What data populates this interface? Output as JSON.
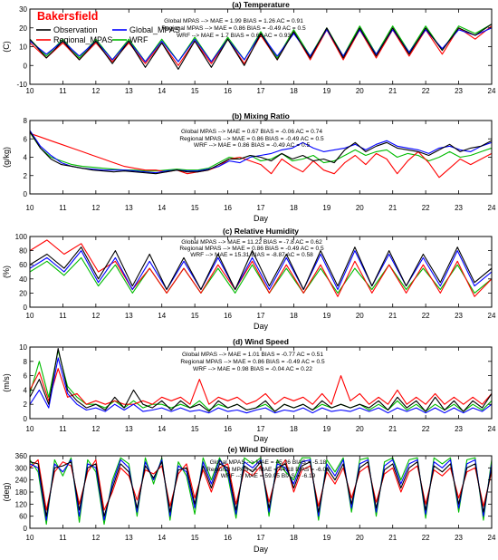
{
  "station": "Bakersfield",
  "colors": {
    "Observation": "#000000",
    "Global_MPAS": "#0000ff",
    "Regional_MPAS": "#ff0000",
    "WRF": "#00bb00",
    "station_title": "#ff0000"
  },
  "legend": {
    "items": [
      "Observation",
      "Global_MPAS",
      "Regional_MPAS",
      "WRF"
    ]
  },
  "chart_data": [
    {
      "type": "line",
      "panel_id": "a",
      "title": "(a) Temperature",
      "xlabel": "",
      "ylabel": "(C)",
      "xlim": [
        10,
        24
      ],
      "ylim": [
        -10,
        30
      ],
      "x_ticks": [
        "10",
        "11",
        "12",
        "13",
        "14",
        "15",
        "16",
        "17",
        "18",
        "19",
        "20",
        "21",
        "22",
        "23",
        "24"
      ],
      "y_ticks": [
        "-10",
        "0",
        "10",
        "20",
        "30"
      ],
      "stats": [
        "Global MPAS --> MAE = 1.99  BIAS = 1.26    AC = 0.91",
        "Regional MPAS --> MAE = 0.86  BIAS = -0.49    AC = 0.5",
        "WRF --> MAE = 1.7  BIAS = 0.68    AC = 0.93"
      ],
      "series": [
        {
          "name": "Observation",
          "values": [
            14,
            4,
            13,
            3,
            13,
            1,
            13,
            -1,
            12,
            -2,
            13,
            -1,
            14,
            0,
            17,
            3,
            18,
            4,
            20,
            4,
            20,
            5,
            20,
            6,
            20,
            8,
            20,
            16,
            22
          ]
        },
        {
          "name": "Global_MPAS",
          "values": [
            13,
            6,
            13,
            5,
            13,
            3,
            13,
            2,
            13,
            2,
            14,
            2,
            14,
            3,
            17,
            5,
            17,
            5,
            19,
            5,
            19,
            6,
            19,
            7,
            19,
            9,
            19,
            16,
            20
          ]
        },
        {
          "name": "Regional_MPAS",
          "values": [
            12,
            4,
            12,
            3,
            12,
            2,
            12,
            1,
            12,
            0,
            13,
            1,
            14,
            1,
            16,
            3,
            18,
            3,
            19,
            3,
            19,
            4,
            19,
            5,
            19,
            6,
            20,
            14,
            21
          ]
        },
        {
          "name": "WRF",
          "values": [
            14,
            5,
            14,
            4,
            14,
            3,
            14,
            2,
            14,
            2,
            15,
            2,
            15,
            3,
            18,
            4,
            19,
            5,
            20,
            5,
            21,
            6,
            21,
            7,
            21,
            8,
            21,
            17,
            22
          ]
        }
      ]
    },
    {
      "type": "line",
      "panel_id": "b",
      "title": "(b) Mixing Ratio",
      "xlabel": "Day",
      "ylabel": "(g/kg)",
      "xlim": [
        10,
        24
      ],
      "ylim": [
        0,
        8
      ],
      "x_ticks": [
        "10",
        "11",
        "12",
        "13",
        "14",
        "15",
        "16",
        "17",
        "18",
        "19",
        "20",
        "21",
        "22",
        "23",
        "24"
      ],
      "y_ticks": [
        "0",
        "2",
        "4",
        "6",
        "8"
      ],
      "stats": [
        "Global MPAS --> MAE = 0.67  BIAS = -0.06    AC = 0.74",
        "Regional MPAS --> MAE = 0.86  BIAS = -0.49    AC = 0.5",
        "WRF --> MAE = 0.86  BIAS = -0.49    AC = 0.5"
      ],
      "series": [
        {
          "name": "Observation",
          "values": [
            6.8,
            5.0,
            3.8,
            3.2,
            3.0,
            2.8,
            2.6,
            2.5,
            2.4,
            2.5,
            2.4,
            2.3,
            2.2,
            2.4,
            2.6,
            2.4,
            2.4,
            2.6,
            3.2,
            3.8,
            3.8,
            4.2,
            4.0,
            3.6,
            4.4,
            3.8,
            4.2,
            3.6,
            3.8,
            3.4,
            4.8,
            5.6,
            4.6,
            5.2,
            5.6,
            5.0,
            4.8,
            4.6,
            4.2,
            4.8,
            5.4,
            4.6,
            5.0,
            5.2,
            5.8
          ]
        },
        {
          "name": "Global_MPAS",
          "values": [
            6.9,
            5.2,
            4.2,
            3.4,
            3.0,
            2.8,
            2.7,
            2.6,
            2.6,
            2.6,
            2.5,
            2.4,
            2.3,
            2.5,
            2.6,
            2.5,
            2.5,
            2.7,
            3.0,
            3.6,
            3.4,
            4.0,
            4.2,
            4.4,
            4.8,
            5.0,
            5.6,
            5.0,
            4.6,
            4.8,
            5.0,
            5.4,
            4.8,
            5.4,
            5.8,
            5.2,
            5.0,
            4.8,
            4.4,
            5.0,
            5.2,
            4.8,
            4.6,
            5.2,
            5.6
          ]
        },
        {
          "name": "Regional_MPAS",
          "values": [
            6.6,
            6.2,
            5.8,
            5.4,
            5.0,
            4.6,
            4.2,
            3.8,
            3.4,
            3.0,
            2.8,
            2.6,
            2.6,
            2.4,
            2.6,
            2.2,
            2.4,
            2.6,
            3.0,
            3.8,
            4.0,
            3.6,
            3.2,
            2.2,
            3.8,
            3.0,
            2.4,
            3.6,
            2.6,
            2.2,
            3.4,
            4.2,
            3.2,
            4.4,
            3.8,
            2.2,
            3.6,
            4.6,
            3.4,
            1.8,
            2.8,
            3.8,
            3.2,
            3.8,
            4.4
          ]
        },
        {
          "name": "WRF",
          "values": [
            6.7,
            5.0,
            4.0,
            3.6,
            3.2,
            3.0,
            2.9,
            2.8,
            2.7,
            2.6,
            2.6,
            2.5,
            2.5,
            2.6,
            2.7,
            2.6,
            2.6,
            2.8,
            3.4,
            4.0,
            3.8,
            4.2,
            3.6,
            3.8,
            4.4,
            3.6,
            3.8,
            4.2,
            3.4,
            3.6,
            4.2,
            4.8,
            4.2,
            4.6,
            4.8,
            4.0,
            4.4,
            4.2,
            3.6,
            4.0,
            4.6,
            4.0,
            4.2,
            4.6,
            5.0
          ]
        }
      ]
    },
    {
      "type": "line",
      "panel_id": "c",
      "title": "(c) Relative Humidity",
      "xlabel": "Day",
      "ylabel": "(%)",
      "xlim": [
        10,
        24
      ],
      "ylim": [
        0,
        100
      ],
      "x_ticks": [
        "10",
        "11",
        "12",
        "13",
        "14",
        "15",
        "16",
        "17",
        "18",
        "19",
        "20",
        "21",
        "22",
        "23",
        "24"
      ],
      "y_ticks": [
        "0",
        "20",
        "40",
        "60",
        "80",
        "100"
      ],
      "stats": [
        "Global MPAS --> MAE = 11.22  BIAS = -7.8    AC = 0.62",
        "Regional MPAS --> MAE = 0.86  BIAS = -0.49    AC = 0.5",
        "WRF --> MAE = 15.31  BIAS = -8.87    AC = 0.58"
      ],
      "series": [
        {
          "name": "Observation",
          "values": [
            60,
            75,
            55,
            85,
            40,
            80,
            30,
            75,
            25,
            70,
            25,
            75,
            25,
            80,
            30,
            75,
            25,
            80,
            30,
            85,
            30,
            80,
            30,
            75,
            35,
            85,
            35,
            55
          ]
        },
        {
          "name": "Global_MPAS",
          "values": [
            55,
            70,
            50,
            80,
            35,
            70,
            25,
            65,
            25,
            65,
            25,
            70,
            25,
            70,
            25,
            70,
            25,
            75,
            25,
            80,
            30,
            75,
            30,
            70,
            30,
            80,
            30,
            50
          ]
        },
        {
          "name": "Regional_MPAS",
          "values": [
            80,
            95,
            75,
            90,
            50,
            65,
            25,
            55,
            20,
            55,
            20,
            60,
            25,
            65,
            20,
            60,
            20,
            60,
            15,
            65,
            20,
            60,
            20,
            60,
            20,
            65,
            15,
            40
          ]
        },
        {
          "name": "WRF",
          "values": [
            50,
            65,
            45,
            70,
            30,
            60,
            20,
            55,
            20,
            55,
            20,
            55,
            20,
            60,
            20,
            55,
            20,
            55,
            20,
            55,
            25,
            60,
            25,
            55,
            25,
            60,
            20,
            40
          ]
        }
      ]
    },
    {
      "type": "line",
      "panel_id": "d",
      "title": "(d) Wind Speed",
      "xlabel": "Day",
      "ylabel": "(m/s)",
      "xlim": [
        10,
        24
      ],
      "ylim": [
        0,
        10
      ],
      "x_ticks": [
        "10",
        "11",
        "12",
        "13",
        "14",
        "15",
        "16",
        "17",
        "18",
        "19",
        "20",
        "21",
        "22",
        "23",
        "24"
      ],
      "y_ticks": [
        "0",
        "2",
        "4",
        "6",
        "8",
        "10"
      ],
      "stats": [
        "Global MPAS --> MAE = 1.01  BIAS = -0.77    AC = 0.51",
        "Regional MPAS --> MAE = 0.86  BIAS = -0.49    AC = 0.5",
        "WRF --> MAE = 0.98  BIAS = -0.04    AC = 0.22"
      ],
      "series": [
        {
          "name": "Observation",
          "values": [
            3.0,
            5.5,
            2.0,
            9.8,
            4.0,
            2.5,
            1.5,
            2.0,
            1.2,
            3.0,
            1.5,
            4.0,
            2.0,
            1.5,
            2.5,
            1.2,
            2.5,
            1.5,
            2.0,
            1.0,
            2.5,
            1.5,
            2.0,
            1.2,
            1.5,
            2.5,
            1.0,
            2.0,
            1.5,
            2.0,
            1.2,
            2.5,
            1.5,
            2.0,
            1.5,
            2.0,
            1.5,
            2.5,
            1.2,
            3.0,
            1.5,
            2.5,
            1.0,
            3.0,
            1.2,
            2.5,
            1.0,
            2.5,
            1.5,
            3.5
          ]
        },
        {
          "name": "Global_MPAS",
          "values": [
            2.0,
            4.0,
            1.5,
            8.5,
            3.5,
            2.0,
            1.2,
            1.5,
            1.0,
            2.0,
            1.2,
            2.0,
            1.0,
            1.2,
            1.5,
            1.0,
            1.5,
            1.0,
            1.2,
            0.8,
            1.5,
            1.0,
            1.2,
            0.8,
            1.2,
            1.5,
            0.8,
            1.2,
            1.0,
            1.5,
            0.8,
            1.5,
            1.0,
            1.2,
            1.0,
            1.5,
            1.0,
            1.5,
            0.8,
            1.5,
            1.0,
            1.5,
            0.8,
            1.5,
            0.8,
            1.5,
            0.8,
            1.5,
            1.0,
            2.0
          ]
        },
        {
          "name": "Regional_MPAS",
          "values": [
            4.0,
            6.5,
            2.5,
            7.0,
            3.0,
            3.5,
            2.0,
            2.5,
            2.0,
            2.5,
            2.0,
            2.0,
            2.5,
            2.0,
            3.0,
            2.5,
            3.0,
            2.0,
            5.5,
            2.0,
            3.0,
            2.5,
            3.0,
            2.0,
            2.5,
            3.5,
            2.0,
            3.0,
            2.5,
            3.0,
            2.0,
            3.5,
            2.0,
            6.0,
            2.5,
            3.5,
            2.0,
            3.0,
            2.0,
            4.0,
            2.0,
            3.0,
            2.0,
            3.5,
            2.0,
            3.0,
            2.0,
            3.0,
            2.0,
            3.5
          ]
        },
        {
          "name": "WRF",
          "values": [
            3.5,
            8.0,
            3.0,
            9.5,
            4.5,
            3.0,
            2.0,
            2.0,
            1.5,
            2.5,
            1.5,
            2.5,
            1.5,
            2.0,
            2.0,
            1.5,
            2.0,
            1.5,
            2.5,
            1.2,
            2.0,
            1.5,
            2.0,
            1.2,
            1.5,
            2.0,
            1.0,
            2.0,
            1.5,
            2.0,
            1.2,
            2.0,
            1.5,
            2.0,
            1.5,
            2.0,
            1.2,
            2.0,
            1.2,
            2.5,
            1.2,
            2.0,
            1.0,
            2.0,
            1.2,
            2.0,
            1.0,
            2.0,
            1.2,
            2.5
          ]
        }
      ]
    },
    {
      "type": "line",
      "panel_id": "e",
      "title": "(e) Wind Direction",
      "xlabel": "Day",
      "ylabel": "(deg)",
      "xlim": [
        10,
        24
      ],
      "ylim": [
        0,
        360
      ],
      "x_ticks": [
        "10",
        "11",
        "12",
        "13",
        "14",
        "15",
        "16",
        "17",
        "18",
        "19",
        "20",
        "21",
        "22",
        "23",
        "24"
      ],
      "y_ticks": [
        "0",
        "60",
        "120",
        "180",
        "240",
        "300",
        "360"
      ],
      "stats": [
        "Global MPAS --> MAE = 45.26  BIAS = -5.18",
        "Regional MPAS --> MAE = 44.18  BIAS = -6.09",
        "WRF --> MAE = 59.05  BIAS = -6.19"
      ],
      "series": [
        {
          "name": "Observation",
          "values": [
            330,
            320,
            60,
            300,
            310,
            330,
            90,
            300,
            320,
            60,
            200,
            320,
            280,
            100,
            310,
            250,
            330,
            80,
            290,
            300,
            120,
            310,
            200,
            320,
            300,
            90,
            310,
            280,
            330,
            100,
            300,
            320,
            200,
            310,
            330,
            80,
            300,
            240,
            320,
            120,
            300,
            330,
            100,
            290,
            320,
            200,
            300,
            330,
            90,
            310,
            280,
            320,
            120,
            300,
            320,
            80,
            300
          ]
        },
        {
          "name": "Global_MPAS",
          "values": [
            320,
            300,
            40,
            320,
            280,
            340,
            60,
            320,
            300,
            40,
            220,
            340,
            300,
            80,
            330,
            240,
            340,
            60,
            310,
            280,
            100,
            330,
            220,
            340,
            280,
            70,
            330,
            300,
            340,
            80,
            320,
            300,
            220,
            330,
            340,
            60,
            320,
            260,
            340,
            100,
            320,
            340,
            80,
            310,
            340,
            220,
            320,
            340,
            70,
            330,
            300,
            340,
            100,
            320,
            340,
            60,
            320
          ]
        },
        {
          "name": "Regional_MPAS",
          "values": [
            300,
            340,
            90,
            280,
            330,
            310,
            120,
            280,
            340,
            90,
            180,
            300,
            260,
            140,
            290,
            270,
            310,
            110,
            270,
            320,
            150,
            290,
            180,
            300,
            320,
            120,
            290,
            260,
            310,
            130,
            280,
            340,
            180,
            290,
            310,
            110,
            280,
            220,
            300,
            150,
            280,
            310,
            130,
            270,
            300,
            180,
            280,
            310,
            120,
            290,
            260,
            300,
            150,
            280,
            300,
            110,
            280
          ]
        },
        {
          "name": "WRF",
          "values": [
            340,
            280,
            20,
            340,
            260,
            350,
            30,
            340,
            280,
            20,
            240,
            350,
            320,
            60,
            350,
            220,
            350,
            40,
            330,
            260,
            70,
            350,
            240,
            350,
            260,
            50,
            350,
            320,
            350,
            60,
            340,
            280,
            240,
            350,
            350,
            40,
            340,
            280,
            350,
            80,
            340,
            350,
            60,
            330,
            350,
            240,
            340,
            350,
            50,
            350,
            320,
            350,
            80,
            340,
            350,
            40,
            340
          ]
        }
      ]
    }
  ]
}
